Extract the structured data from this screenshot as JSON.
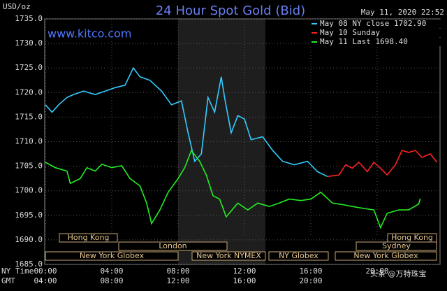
{
  "chart_data": {
    "type": "line",
    "title": "24 Hour Spot Gold (Bid)",
    "unit_label": "USD/oz",
    "timestamp": "May 11, 2020 22:52",
    "site": "www.kitco.com",
    "x_row_labels": [
      "NY Time",
      "GMT"
    ],
    "xlim": [
      0,
      24
    ],
    "xticks": [
      {
        "value": 0,
        "label": "00:00"
      },
      {
        "value": 4,
        "label": "04:00"
      },
      {
        "value": 8,
        "label": "08:00"
      },
      {
        "value": 12,
        "label": "12:00"
      },
      {
        "value": 16,
        "label": "16:00"
      },
      {
        "value": 20,
        "label": "20:00"
      }
    ],
    "gmt_ticks": [
      "04:00",
      "08:00",
      "12:00",
      "16:00",
      "20:00"
    ],
    "ylim": [
      1685,
      1735
    ],
    "yticks": [
      {
        "value": 1685,
        "label": "1685.0"
      },
      {
        "value": 1690,
        "label": "1690.0"
      },
      {
        "value": 1695,
        "label": "1695.0"
      },
      {
        "value": 1700,
        "label": "1700.0"
      },
      {
        "value": 1705,
        "label": "1705.0"
      },
      {
        "value": 1710,
        "label": "1710.0"
      },
      {
        "value": 1715,
        "label": "1715.0"
      },
      {
        "value": 1720,
        "label": "1720.0"
      },
      {
        "value": 1725,
        "label": "1725.0"
      },
      {
        "value": 1730,
        "label": "1730.0"
      },
      {
        "value": 1735,
        "label": "1735.0"
      }
    ],
    "grid": true,
    "sessions": [
      "Hong Kong",
      "London",
      "New York Globex",
      "New York NYMEX",
      "NY Globex",
      "Sydney",
      "Hong Kong",
      "New York Globex"
    ],
    "watermark": "头条 @万特珠宝",
    "series": [
      {
        "name": "May 08 NY close 1702.90",
        "color": "#33ccff",
        "x": [
          0,
          0.4,
          0.8,
          1.3,
          1.7,
          2.3,
          3.0,
          3.6,
          4.2,
          4.8,
          5.3,
          5.7,
          6.3,
          7.0,
          7.6,
          8.2,
          8.6,
          9.0,
          9.4,
          9.8,
          10.2,
          10.6,
          10.8,
          11.2,
          11.6,
          12.0,
          12.4,
          13.1,
          13.7,
          14.3,
          15.0,
          15.8,
          16.4,
          17.0
        ],
        "values": [
          1717.5,
          1716,
          1717.5,
          1719,
          1719.6,
          1720.3,
          1719.6,
          1720.3,
          1721,
          1721.5,
          1725,
          1723.2,
          1722.5,
          1720.3,
          1717.5,
          1718.3,
          1711.8,
          1706,
          1707.5,
          1719,
          1716,
          1723.2,
          1719,
          1711.8,
          1715.3,
          1714.6,
          1710.4,
          1711,
          1708.2,
          1706,
          1705.3,
          1706,
          1703.9,
          1702.9
        ]
      },
      {
        "name": "May 10 Sunday",
        "color": "#ff2222",
        "x": [
          17.0,
          17.7,
          18.1,
          18.5,
          18.9,
          19.4,
          19.8,
          20.2,
          20.6,
          21.1,
          21.5,
          21.9,
          22.3,
          22.7,
          23.2,
          23.6
        ],
        "values": [
          1702.9,
          1703.2,
          1705.3,
          1704.6,
          1705.8,
          1703.9,
          1705.8,
          1704.6,
          1703.2,
          1705.3,
          1708.2,
          1707.8,
          1708.2,
          1706.8,
          1707.5,
          1705.8
        ]
      },
      {
        "name": "May 11 Last 1698.40",
        "color": "#22ee22",
        "x": [
          0,
          0.6,
          1.3,
          1.5,
          2.1,
          2.5,
          3.0,
          3.4,
          4.0,
          4.6,
          5.1,
          5.7,
          6.1,
          6.4,
          6.9,
          7.4,
          8.0,
          8.4,
          8.8,
          9.3,
          9.7,
          10.1,
          10.5,
          10.9,
          11.6,
          12.2,
          12.8,
          13.5,
          14.1,
          14.7,
          15.4,
          16.0,
          16.6,
          17.3,
          17.9,
          18.5,
          19.2,
          19.8,
          20.2,
          20.6,
          21.3,
          21.9,
          22.5,
          22.6
        ],
        "values": [
          1705.8,
          1704.7,
          1704,
          1701.5,
          1702.5,
          1704.7,
          1704,
          1705.4,
          1704.7,
          1705.1,
          1702.5,
          1701,
          1697.5,
          1693.3,
          1696.1,
          1699.7,
          1702.5,
          1704.7,
          1708.2,
          1706,
          1703.2,
          1699,
          1698.3,
          1694.7,
          1697.5,
          1696.1,
          1697.5,
          1696.8,
          1697.5,
          1698.3,
          1698,
          1698.3,
          1699.7,
          1697.5,
          1697.2,
          1696.8,
          1696.4,
          1696.1,
          1692.5,
          1695.4,
          1696.1,
          1696.1,
          1697.3,
          1698.4
        ]
      }
    ]
  }
}
